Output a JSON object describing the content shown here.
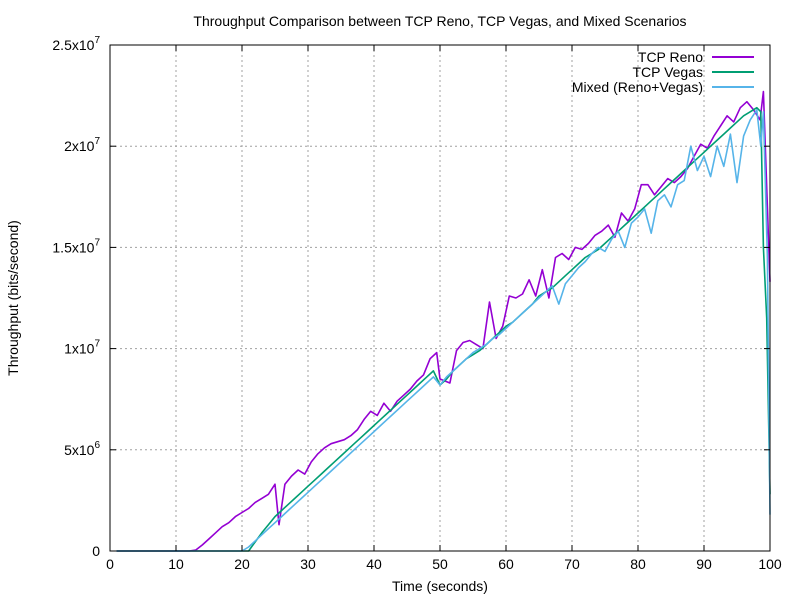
{
  "chart_data": {
    "type": "line",
    "title": "Throughput Comparison between TCP Reno, TCP Vegas, and Mixed Scenarios",
    "xlabel": "Time (seconds)",
    "ylabel": "Throughput (bits/second)",
    "xlim": [
      0,
      100
    ],
    "ylim": [
      0,
      25000000
    ],
    "grid": true,
    "legend_position": "top-right",
    "x_ticks": [
      0,
      10,
      20,
      30,
      40,
      50,
      60,
      70,
      80,
      90,
      100
    ],
    "x_tick_labels": [
      "0",
      "10",
      "20",
      "30",
      "40",
      "50",
      "60",
      "70",
      "80",
      "90",
      "100"
    ],
    "y_ticks": [
      0,
      5000000,
      10000000,
      15000000,
      20000000,
      25000000
    ],
    "y_tick_labels": [
      {
        "mantissa": "0",
        "exp": ""
      },
      {
        "mantissa": "5x10",
        "exp": "6"
      },
      {
        "mantissa": "1x10",
        "exp": "7"
      },
      {
        "mantissa": "1.5x10",
        "exp": "7"
      },
      {
        "mantissa": "2x10",
        "exp": "7"
      },
      {
        "mantissa": "2.5x10",
        "exp": "7"
      }
    ],
    "series": [
      {
        "name": "TCP Reno",
        "color": "#9400d3",
        "points": [
          [
            1,
            0
          ],
          [
            12,
            0
          ],
          [
            13,
            50000
          ],
          [
            14,
            300000
          ],
          [
            15,
            600000
          ],
          [
            16,
            900000
          ],
          [
            17,
            1200000
          ],
          [
            18,
            1400000
          ],
          [
            19,
            1700000
          ],
          [
            20,
            1900000
          ],
          [
            21,
            2100000
          ],
          [
            22,
            2400000
          ],
          [
            23,
            2600000
          ],
          [
            24,
            2800000
          ],
          [
            25,
            3300000
          ],
          [
            25.6,
            1300000
          ],
          [
            26.5,
            3300000
          ],
          [
            27.5,
            3700000
          ],
          [
            28.5,
            4000000
          ],
          [
            29.5,
            3800000
          ],
          [
            30.5,
            4400000
          ],
          [
            31.5,
            4800000
          ],
          [
            32.5,
            5100000
          ],
          [
            33.5,
            5300000
          ],
          [
            34.5,
            5400000
          ],
          [
            35.5,
            5500000
          ],
          [
            36.5,
            5700000
          ],
          [
            37.5,
            6000000
          ],
          [
            38.5,
            6500000
          ],
          [
            39.5,
            6900000
          ],
          [
            40.5,
            6700000
          ],
          [
            41.5,
            7300000
          ],
          [
            42.5,
            6900000
          ],
          [
            43.5,
            7400000
          ],
          [
            44.5,
            7700000
          ],
          [
            45.5,
            8000000
          ],
          [
            46.5,
            8400000
          ],
          [
            47.5,
            8700000
          ],
          [
            48.5,
            9500000
          ],
          [
            49.5,
            9800000
          ],
          [
            50,
            8500000
          ],
          [
            51.5,
            8300000
          ],
          [
            52.5,
            9900000
          ],
          [
            53.5,
            10300000
          ],
          [
            54.5,
            10400000
          ],
          [
            55.5,
            10200000
          ],
          [
            56.5,
            10000000
          ],
          [
            57.5,
            12300000
          ],
          [
            58.5,
            10500000
          ],
          [
            59.5,
            11100000
          ],
          [
            60.5,
            12600000
          ],
          [
            61.5,
            12500000
          ],
          [
            62.5,
            12700000
          ],
          [
            63.5,
            13400000
          ],
          [
            64.5,
            12600000
          ],
          [
            65.5,
            13900000
          ],
          [
            66.5,
            12500000
          ],
          [
            67.5,
            14500000
          ],
          [
            68.5,
            14700000
          ],
          [
            69.5,
            14400000
          ],
          [
            70.5,
            15000000
          ],
          [
            71.5,
            14900000
          ],
          [
            72.5,
            15200000
          ],
          [
            73.5,
            15600000
          ],
          [
            74.5,
            15800000
          ],
          [
            75.5,
            16100000
          ],
          [
            76.5,
            15500000
          ],
          [
            77.5,
            16700000
          ],
          [
            78.5,
            16300000
          ],
          [
            79.5,
            16900000
          ],
          [
            80.5,
            18100000
          ],
          [
            81.5,
            18100000
          ],
          [
            82.5,
            17600000
          ],
          [
            83.5,
            18000000
          ],
          [
            84.5,
            18400000
          ],
          [
            85.5,
            18200000
          ],
          [
            86.5,
            18500000
          ],
          [
            87.5,
            18900000
          ],
          [
            88.5,
            19500000
          ],
          [
            89.5,
            20100000
          ],
          [
            90.5,
            19900000
          ],
          [
            91.5,
            20500000
          ],
          [
            92.5,
            21000000
          ],
          [
            93.5,
            21500000
          ],
          [
            94.5,
            21200000
          ],
          [
            95.5,
            21900000
          ],
          [
            96.5,
            22200000
          ],
          [
            97.5,
            21800000
          ],
          [
            98.5,
            21300000
          ],
          [
            99,
            22700000
          ],
          [
            99.6,
            17000000
          ],
          [
            100,
            13300000
          ]
        ]
      },
      {
        "name": "TCP Vegas",
        "color": "#009e73",
        "points": [
          [
            1,
            0
          ],
          [
            21,
            0
          ],
          [
            22,
            450000
          ],
          [
            23,
            900000
          ],
          [
            24,
            1300000
          ],
          [
            25,
            1700000
          ],
          [
            26,
            2000000
          ],
          [
            27,
            2300000
          ],
          [
            28,
            2600000
          ],
          [
            29,
            2900000
          ],
          [
            30,
            3200000
          ],
          [
            31,
            3500000
          ],
          [
            32,
            3800000
          ],
          [
            33,
            4100000
          ],
          [
            34,
            4400000
          ],
          [
            35,
            4700000
          ],
          [
            36,
            5000000
          ],
          [
            37,
            5300000
          ],
          [
            38,
            5600000
          ],
          [
            39,
            5900000
          ],
          [
            40,
            6200000
          ],
          [
            41,
            6500000
          ],
          [
            42,
            6800000
          ],
          [
            43,
            7100000
          ],
          [
            44,
            7400000
          ],
          [
            45,
            7700000
          ],
          [
            46,
            8000000
          ],
          [
            47,
            8300000
          ],
          [
            48,
            8600000
          ],
          [
            49,
            8900000
          ],
          [
            50,
            8200000
          ],
          [
            51,
            8500000
          ],
          [
            52,
            8900000
          ],
          [
            53,
            9200000
          ],
          [
            54,
            9500000
          ],
          [
            55,
            9700000
          ],
          [
            56,
            9900000
          ],
          [
            57,
            10200000
          ],
          [
            58,
            10500000
          ],
          [
            59,
            10800000
          ],
          [
            60,
            11100000
          ],
          [
            61,
            11300000
          ],
          [
            62,
            11600000
          ],
          [
            63,
            11900000
          ],
          [
            64,
            12200000
          ],
          [
            65,
            12600000
          ],
          [
            66,
            12800000
          ],
          [
            67,
            13000000
          ],
          [
            68,
            13300000
          ],
          [
            69,
            13600000
          ],
          [
            70,
            13900000
          ],
          [
            71,
            14200000
          ],
          [
            72,
            14500000
          ],
          [
            73,
            14700000
          ],
          [
            74,
            14900000
          ],
          [
            75,
            15200000
          ],
          [
            76,
            15500000
          ],
          [
            77,
            15800000
          ],
          [
            78,
            16100000
          ],
          [
            79,
            16400000
          ],
          [
            80,
            16700000
          ],
          [
            81,
            17000000
          ],
          [
            82,
            17300000
          ],
          [
            83,
            17600000
          ],
          [
            84,
            17900000
          ],
          [
            85,
            18200000
          ],
          [
            86,
            18500000
          ],
          [
            87,
            18800000
          ],
          [
            88,
            19100000
          ],
          [
            89,
            19400000
          ],
          [
            90,
            19700000
          ],
          [
            91,
            20000000
          ],
          [
            92,
            20300000
          ],
          [
            93,
            20600000
          ],
          [
            94,
            20900000
          ],
          [
            95,
            21200000
          ],
          [
            96,
            21500000
          ],
          [
            97,
            21700000
          ],
          [
            98,
            21900000
          ],
          [
            98.6,
            21700000
          ],
          [
            99,
            15000000
          ],
          [
            99.5,
            11500000
          ],
          [
            100,
            2800000
          ]
        ]
      },
      {
        "name": "Mixed (Reno+Vegas)",
        "color": "#56b4e9",
        "points": [
          [
            1,
            0
          ],
          [
            20,
            0
          ],
          [
            21,
            200000
          ],
          [
            22,
            500000
          ],
          [
            23,
            800000
          ],
          [
            24,
            1100000
          ],
          [
            25,
            1400000
          ],
          [
            26,
            1700000
          ],
          [
            27,
            2000000
          ],
          [
            28,
            2300000
          ],
          [
            29,
            2600000
          ],
          [
            30,
            2900000
          ],
          [
            31,
            3200000
          ],
          [
            32,
            3500000
          ],
          [
            33,
            3800000
          ],
          [
            34,
            4100000
          ],
          [
            35,
            4400000
          ],
          [
            36,
            4700000
          ],
          [
            37,
            5000000
          ],
          [
            38,
            5300000
          ],
          [
            39,
            5600000
          ],
          [
            40,
            5900000
          ],
          [
            41,
            6200000
          ],
          [
            42,
            6500000
          ],
          [
            43,
            6800000
          ],
          [
            44,
            7100000
          ],
          [
            45,
            7400000
          ],
          [
            46,
            7700000
          ],
          [
            47,
            8000000
          ],
          [
            48,
            8300000
          ],
          [
            49,
            8600000
          ],
          [
            50,
            8200000
          ],
          [
            51,
            8600000
          ],
          [
            52,
            8900000
          ],
          [
            53,
            9200000
          ],
          [
            54,
            9500000
          ],
          [
            55,
            9800000
          ],
          [
            56,
            10000000
          ],
          [
            57,
            10200000
          ],
          [
            58,
            10500000
          ],
          [
            59,
            10700000
          ],
          [
            60,
            11000000
          ],
          [
            61,
            11300000
          ],
          [
            62,
            11600000
          ],
          [
            63,
            11900000
          ],
          [
            64,
            12200000
          ],
          [
            65,
            12500000
          ],
          [
            66,
            12800000
          ],
          [
            67,
            13100000
          ],
          [
            68,
            12200000
          ],
          [
            69,
            13200000
          ],
          [
            70,
            13600000
          ],
          [
            71,
            14000000
          ],
          [
            72,
            14300000
          ],
          [
            73,
            14700000
          ],
          [
            74,
            15000000
          ],
          [
            75,
            14800000
          ],
          [
            76,
            15400000
          ],
          [
            77,
            15800000
          ],
          [
            78,
            15000000
          ],
          [
            79,
            16200000
          ],
          [
            80,
            16500000
          ],
          [
            81,
            16900000
          ],
          [
            82,
            15700000
          ],
          [
            83,
            17300000
          ],
          [
            84,
            17600000
          ],
          [
            85,
            17000000
          ],
          [
            86,
            18100000
          ],
          [
            87,
            18300000
          ],
          [
            88,
            20000000
          ],
          [
            89,
            18800000
          ],
          [
            90,
            19500000
          ],
          [
            91,
            18500000
          ],
          [
            92,
            20000000
          ],
          [
            93,
            19000000
          ],
          [
            94,
            20600000
          ],
          [
            95,
            18200000
          ],
          [
            96,
            20500000
          ],
          [
            97,
            21300000
          ],
          [
            98,
            21800000
          ],
          [
            98.6,
            20000000
          ],
          [
            99,
            21700000
          ],
          [
            99.6,
            14500000
          ],
          [
            100,
            1800000
          ]
        ]
      }
    ]
  }
}
